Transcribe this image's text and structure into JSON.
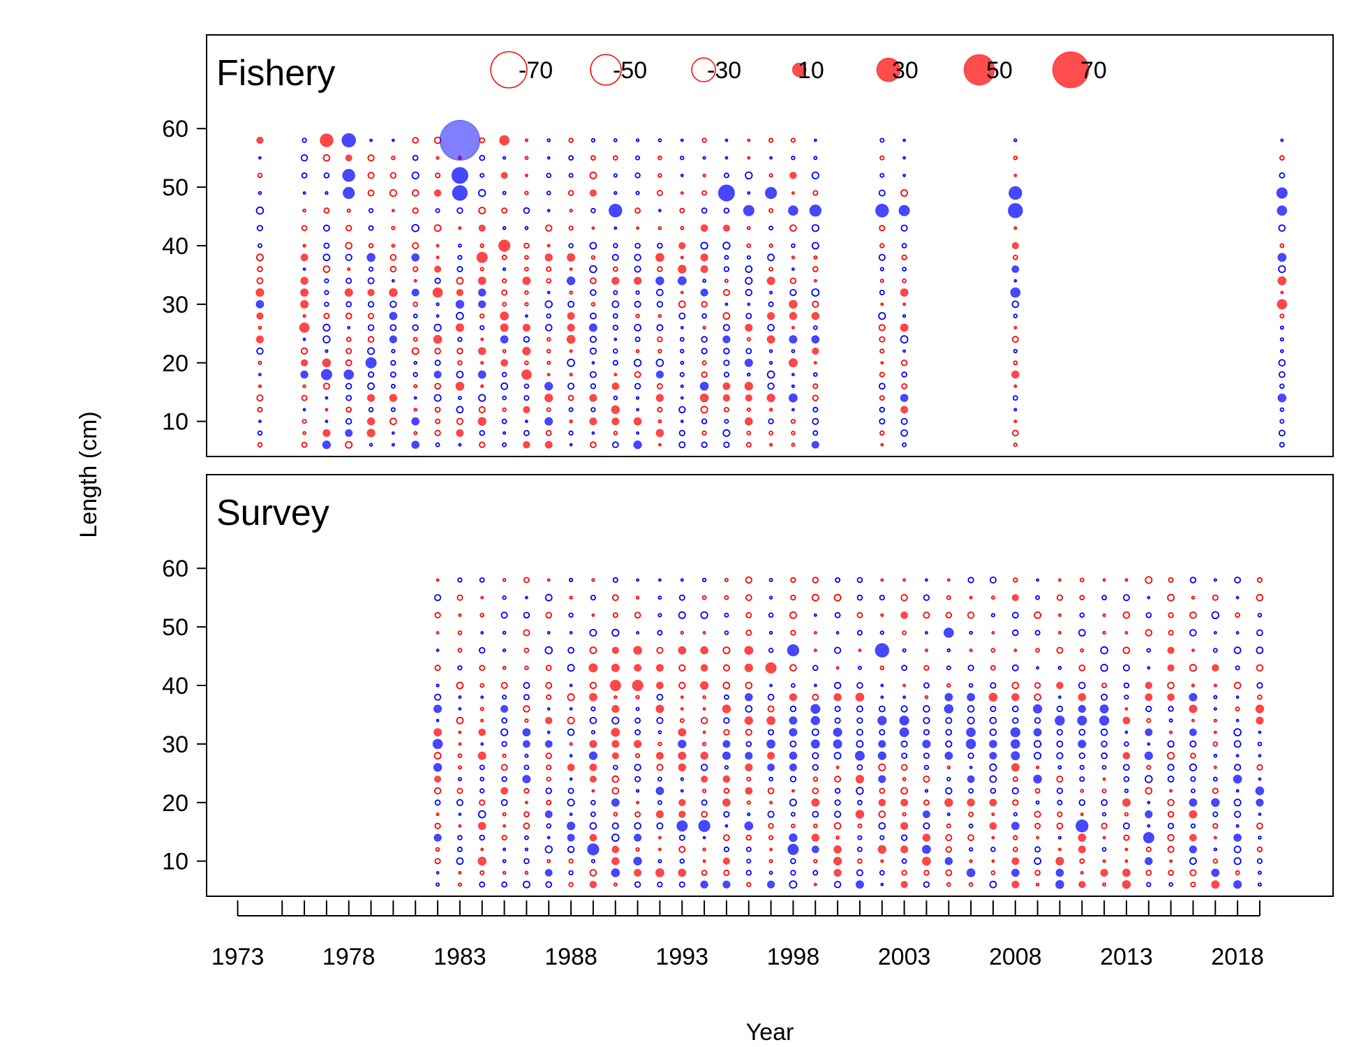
{
  "chart_data": {
    "type": "scatter",
    "subtype": "bubble",
    "xlabel": "Year",
    "ylabel": "Length (cm)",
    "x_ticks": [
      "1973",
      "1978",
      "1983",
      "1988",
      "1993",
      "1998",
      "2003",
      "2008",
      "2013",
      "2018"
    ],
    "x_minor_ticks": [
      1973,
      1975,
      1976,
      1977,
      1978,
      1979,
      1980,
      1981,
      1982,
      1983,
      1984,
      1985,
      1986,
      1987,
      1988,
      1989,
      1990,
      1991,
      1992,
      1993,
      1994,
      1995,
      1996,
      1997,
      1998,
      1999,
      2000,
      2001,
      2002,
      2003,
      2004,
      2005,
      2006,
      2007,
      2008,
      2009,
      2010,
      2011,
      2012,
      2013,
      2014,
      2015,
      2016,
      2017,
      2018,
      2019
    ],
    "xlim": [
      1971.6,
      2022.3
    ],
    "y_ticks": [
      "10",
      "20",
      "30",
      "40",
      "50",
      "60"
    ],
    "ylim": [
      4,
      76
    ],
    "length_bins": [
      6,
      8,
      10,
      12,
      14,
      16,
      18,
      20,
      22,
      24,
      26,
      28,
      30,
      32,
      34,
      36,
      38,
      40,
      43,
      46,
      49,
      52,
      55,
      58
    ],
    "colors": {
      "positive": "#ff0000",
      "negative": "#0000ff",
      "frame": "#000000"
    },
    "legend": {
      "labels": [
        "-70",
        "-50",
        "-30",
        "10",
        "30",
        "50",
        "70"
      ],
      "values": [
        -70,
        -50,
        -30,
        10,
        30,
        50,
        70
      ],
      "placement": "top, inside Fishery panel"
    },
    "encoding": "bubble area proportional to residual magnitude; filled = positive residual (red) or large negative (blue); open rings = smaller residuals",
    "panels": [
      {
        "title": "Fishery",
        "years": [
          1974,
          1976,
          1977,
          1978,
          1979,
          1980,
          1981,
          1982,
          1983,
          1984,
          1985,
          1986,
          1987,
          1988,
          1989,
          1990,
          1991,
          1992,
          1993,
          1994,
          1995,
          1996,
          1997,
          1998,
          1999,
          2002,
          2003,
          2008,
          2020
        ],
        "highlights": [
          {
            "year": 1983,
            "length": 58,
            "value": -85
          },
          {
            "year": 1983,
            "length": 52,
            "value": -14
          },
          {
            "year": 1983,
            "length": 49,
            "value": -12
          },
          {
            "year": 1977,
            "length": 58,
            "value": 9
          },
          {
            "year": 1978,
            "length": 58,
            "value": -10
          },
          {
            "year": 1978,
            "length": 52,
            "value": -8
          },
          {
            "year": 1978,
            "length": 49,
            "value": -7
          },
          {
            "year": 1977,
            "length": 18,
            "value": -6
          },
          {
            "year": 1978,
            "length": 18,
            "value": -5
          },
          {
            "year": 1979,
            "length": 20,
            "value": -6
          },
          {
            "year": 1976,
            "length": 26,
            "value": 5
          },
          {
            "year": 1985,
            "length": 58,
            "value": 5
          },
          {
            "year": 1985,
            "length": 40,
            "value": 7
          },
          {
            "year": 1984,
            "length": 38,
            "value": 6
          },
          {
            "year": 1982,
            "length": 32,
            "value": 5
          },
          {
            "year": 1986,
            "length": 18,
            "value": 5
          },
          {
            "year": 1990,
            "length": 46,
            "value": -9
          },
          {
            "year": 1995,
            "length": 49,
            "value": -14
          },
          {
            "year": 1996,
            "length": 46,
            "value": -6
          },
          {
            "year": 1997,
            "length": 49,
            "value": -7
          },
          {
            "year": 1998,
            "length": 46,
            "value": -5
          },
          {
            "year": 1999,
            "length": 46,
            "value": -7
          },
          {
            "year": 2002,
            "length": 46,
            "value": -9
          },
          {
            "year": 2003,
            "length": 46,
            "value": -6
          },
          {
            "year": 2008,
            "length": 46,
            "value": -11
          },
          {
            "year": 2008,
            "length": 49,
            "value": -9
          },
          {
            "year": 2008,
            "length": 32,
            "value": -5
          },
          {
            "year": 2020,
            "length": 49,
            "value": -6
          },
          {
            "year": 2020,
            "length": 46,
            "value": -5
          },
          {
            "year": 2020,
            "length": 30,
            "value": 5
          }
        ]
      },
      {
        "title": "Survey",
        "years": [
          1982,
          1983,
          1984,
          1985,
          1986,
          1987,
          1988,
          1989,
          1990,
          1991,
          1992,
          1993,
          1994,
          1995,
          1996,
          1997,
          1998,
          1999,
          2000,
          2001,
          2002,
          2003,
          2004,
          2005,
          2006,
          2007,
          2008,
          2009,
          2010,
          2011,
          2012,
          2013,
          2014,
          2015,
          2016,
          2017,
          2018,
          2019
        ],
        "highlights": [
          {
            "year": 2002,
            "length": 46,
            "value": -10
          },
          {
            "year": 1998,
            "length": 46,
            "value": -7
          },
          {
            "year": 1997,
            "length": 43,
            "value": 6
          },
          {
            "year": 1990,
            "length": 40,
            "value": 6
          },
          {
            "year": 1991,
            "length": 40,
            "value": 6
          },
          {
            "year": 1994,
            "length": 16,
            "value": -7
          },
          {
            "year": 1993,
            "length": 16,
            "value": -6
          },
          {
            "year": 1989,
            "length": 12,
            "value": -7
          },
          {
            "year": 1998,
            "length": 12,
            "value": -6
          },
          {
            "year": 2011,
            "length": 16,
            "value": -8
          },
          {
            "year": 2014,
            "length": 14,
            "value": -6
          },
          {
            "year": 2005,
            "length": 49,
            "value": -5
          },
          {
            "year": 1982,
            "length": 30,
            "value": -5
          }
        ]
      }
    ]
  }
}
